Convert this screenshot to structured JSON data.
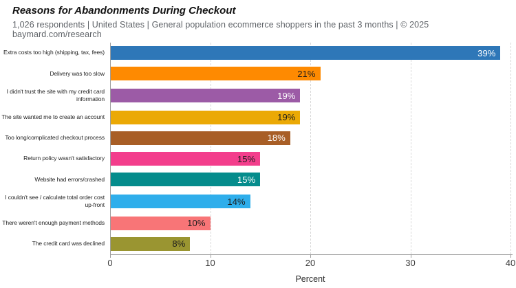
{
  "page": {
    "title": "Reasons for Abandonments During Checkout",
    "subtitle": "1,026 respondents | United States | General population ecommerce shoppers in the past 3 months | © 2025 baymard.com/research"
  },
  "chart_data": {
    "type": "bar",
    "orientation": "horizontal",
    "title": "Reasons for Abandonments During Checkout",
    "xlabel": "Percent",
    "ylabel": "",
    "xlim": [
      0,
      40
    ],
    "x_ticks": [
      0,
      10,
      20,
      30,
      40
    ],
    "grid": true,
    "legend": false,
    "categories": [
      "Extra costs too high (shipping, tax, fees)",
      "Delivery was too slow",
      "I didn't trust the site with my credit card\ninformation",
      "The site wanted me to create an account",
      "Too long/complicated checkout process",
      "Return policy wasn't satisfactory",
      "Website had errors/crashed",
      "I couldn't see / calculate total order cost\nup-front",
      "There weren't enough payment methods",
      "The credit card was declined"
    ],
    "values": [
      39,
      21,
      19,
      19,
      18,
      15,
      15,
      14,
      10,
      8
    ],
    "value_labels": [
      "39%",
      "21%",
      "19%",
      "19%",
      "18%",
      "15%",
      "15%",
      "14%",
      "10%",
      "8%"
    ],
    "bar_colors": [
      "#2e77b8",
      "#fe8a01",
      "#9c5ba6",
      "#eba905",
      "#a85e26",
      "#f33e8c",
      "#058c8c",
      "#2faeeb",
      "#f87577",
      "#9a9531"
    ],
    "value_text_colors": [
      "#ffffff",
      "#1c1c1c",
      "#ffffff",
      "#1c1c1c",
      "#ffffff",
      "#1c1c1c",
      "#ffffff",
      "#1c1c1c",
      "#1c1c1c",
      "#1c1c1c"
    ],
    "axis_color": "#9e9e9e",
    "grid_color": "#d8d8d8"
  }
}
